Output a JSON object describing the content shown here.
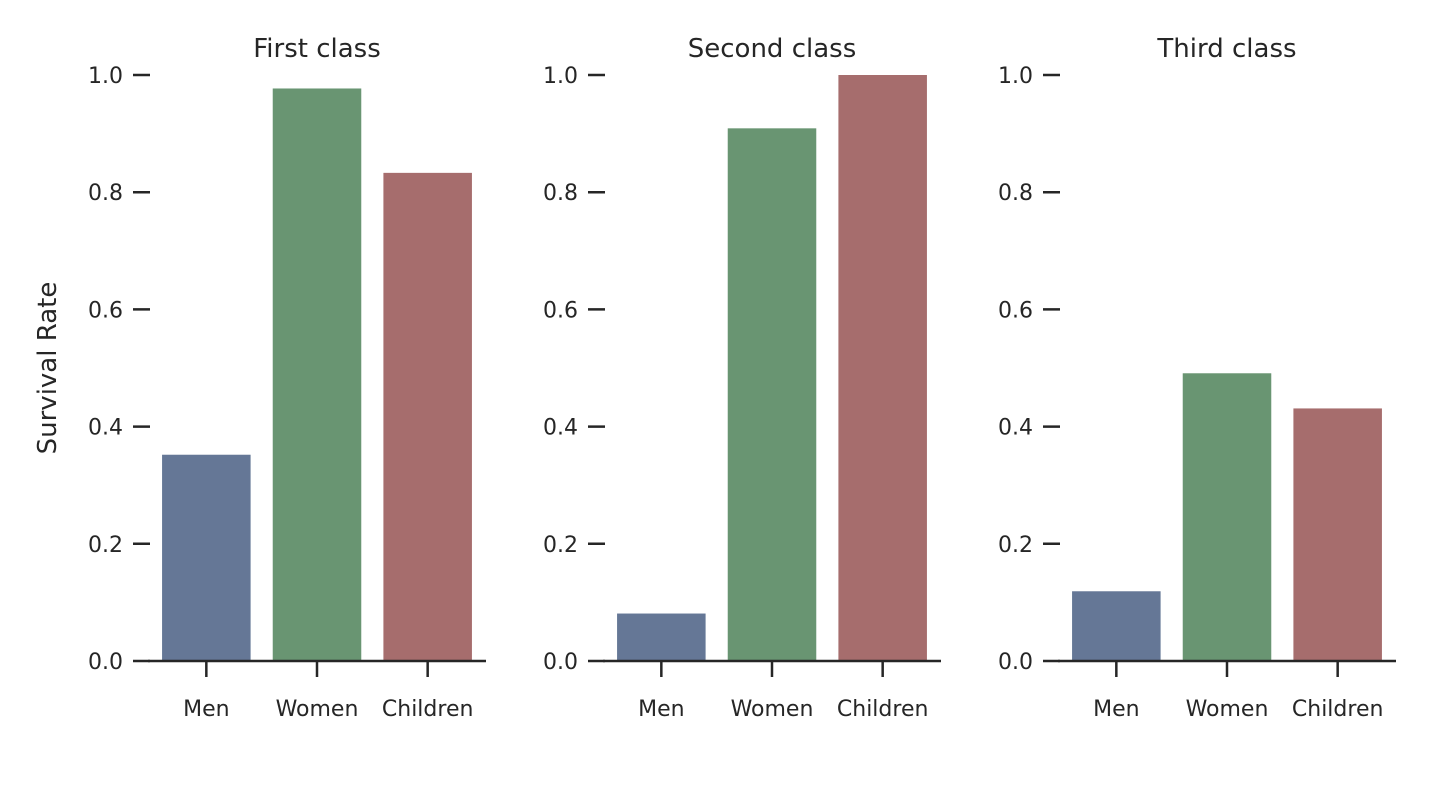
{
  "chart_data": {
    "type": "bar",
    "ylabel": "Survival Rate",
    "ylim": [
      0,
      1.0
    ],
    "yticks": [
      "0.0",
      "0.2",
      "0.4",
      "0.6",
      "0.8",
      "1.0"
    ],
    "categories": [
      "Men",
      "Women",
      "Children"
    ],
    "colors": [
      "#657796",
      "#699572",
      "#a66d6d"
    ],
    "grid": false,
    "legend": "none",
    "panels": [
      {
        "title": "First class",
        "values": [
          0.352,
          0.977,
          0.833
        ]
      },
      {
        "title": "Second class",
        "values": [
          0.081,
          0.909,
          1.0
        ]
      },
      {
        "title": "Third class",
        "values": [
          0.119,
          0.491,
          0.431
        ]
      }
    ]
  }
}
